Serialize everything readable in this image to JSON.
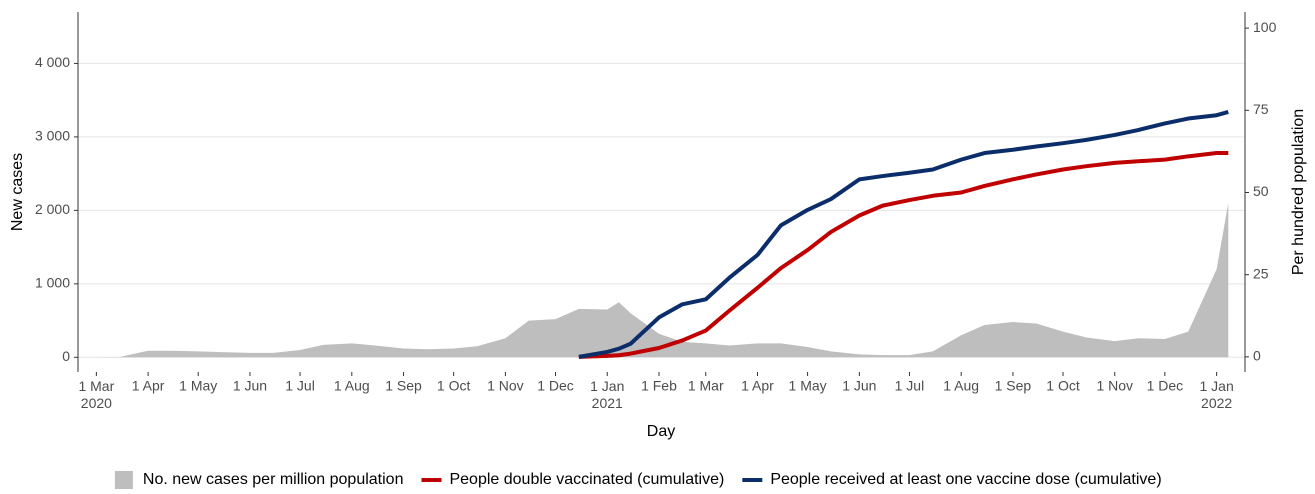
{
  "chart_data": {
    "type": "line",
    "x_label": "Day",
    "y_label": "New cases",
    "y2_label": "Per hundred population",
    "x": [
      "2020-03-01",
      "2020-03-15",
      "2020-04-01",
      "2020-04-15",
      "2020-05-01",
      "2020-05-15",
      "2020-06-01",
      "2020-06-15",
      "2020-07-01",
      "2020-07-15",
      "2020-08-01",
      "2020-08-15",
      "2020-09-01",
      "2020-09-15",
      "2020-10-01",
      "2020-10-15",
      "2020-11-01",
      "2020-11-15",
      "2020-12-01",
      "2020-12-15",
      "2021-01-01",
      "2021-01-08",
      "2021-01-15",
      "2021-02-01",
      "2021-02-15",
      "2021-03-01",
      "2021-03-15",
      "2021-04-01",
      "2021-04-15",
      "2021-05-01",
      "2021-05-15",
      "2021-06-01",
      "2021-06-15",
      "2021-07-01",
      "2021-07-15",
      "2021-08-01",
      "2021-08-15",
      "2021-09-01",
      "2021-09-15",
      "2021-10-01",
      "2021-10-15",
      "2021-11-01",
      "2021-11-15",
      "2021-12-01",
      "2021-12-15",
      "2022-01-01",
      "2022-01-08"
    ],
    "series": [
      {
        "name": "No. new cases per million population",
        "type": "area",
        "color": "#bebebe",
        "values": [
          0,
          5,
          90,
          90,
          80,
          70,
          60,
          60,
          100,
          170,
          190,
          160,
          120,
          110,
          120,
          150,
          260,
          500,
          520,
          660,
          650,
          750,
          600,
          320,
          210,
          190,
          160,
          190,
          190,
          140,
          80,
          40,
          30,
          30,
          80,
          300,
          440,
          480,
          460,
          350,
          270,
          220,
          260,
          250,
          350,
          1200,
          2100
        ]
      },
      {
        "name": "People double vaccinated (cumulative)",
        "type": "line",
        "axis": "y2",
        "color": "#c00000",
        "values": [
          null,
          null,
          null,
          null,
          null,
          null,
          null,
          null,
          null,
          null,
          null,
          null,
          null,
          null,
          null,
          null,
          null,
          null,
          null,
          0,
          0.3,
          0.5,
          1,
          2.7,
          5,
          8,
          14,
          21,
          27,
          32.5,
          38,
          43,
          46,
          47.7,
          49,
          50,
          52,
          54,
          55.5,
          57,
          58,
          59,
          59.5,
          60,
          61,
          62,
          62
        ]
      },
      {
        "name": "People received at least one vaccine dose (cumulative)",
        "type": "line",
        "axis": "y2",
        "color": "#0b2e6b",
        "values": [
          null,
          null,
          null,
          null,
          null,
          null,
          null,
          null,
          null,
          null,
          null,
          null,
          null,
          null,
          null,
          null,
          null,
          null,
          null,
          0,
          1.5,
          2.5,
          4,
          12,
          16,
          17.5,
          24,
          31,
          40,
          44.7,
          48,
          54,
          55,
          56,
          57,
          60,
          62,
          63,
          64,
          65,
          66,
          67.5,
          69,
          71,
          72.5,
          73.5,
          74.5
        ]
      }
    ],
    "xlim": [
      "2020-02-19",
      "2022-01-18"
    ],
    "xticks": [
      {
        "value": "2020-03-01",
        "label": "1 Mar\n2020"
      },
      {
        "value": "2020-04-01",
        "label": "1 Apr"
      },
      {
        "value": "2020-05-01",
        "label": "1 May"
      },
      {
        "value": "2020-06-01",
        "label": "1 Jun"
      },
      {
        "value": "2020-07-01",
        "label": "1 Jul"
      },
      {
        "value": "2020-08-01",
        "label": "1 Aug"
      },
      {
        "value": "2020-09-01",
        "label": "1 Sep"
      },
      {
        "value": "2020-10-01",
        "label": "1 Oct"
      },
      {
        "value": "2020-11-01",
        "label": "1 Nov"
      },
      {
        "value": "2020-12-01",
        "label": "1 Dec"
      },
      {
        "value": "2021-01-01",
        "label": "1 Jan\n2021"
      },
      {
        "value": "2021-02-01",
        "label": "1 Feb"
      },
      {
        "value": "2021-03-01",
        "label": "1 Mar"
      },
      {
        "value": "2021-04-01",
        "label": "1 Apr"
      },
      {
        "value": "2021-05-01",
        "label": "1 May"
      },
      {
        "value": "2021-06-01",
        "label": "1 Jun"
      },
      {
        "value": "2021-07-01",
        "label": "1 Jul"
      },
      {
        "value": "2021-08-01",
        "label": "1 Aug"
      },
      {
        "value": "2021-09-01",
        "label": "1 Sep"
      },
      {
        "value": "2021-10-01",
        "label": "1 Oct"
      },
      {
        "value": "2021-11-01",
        "label": "1 Nov"
      },
      {
        "value": "2021-12-01",
        "label": "1 Dec"
      },
      {
        "value": "2022-01-01",
        "label": "1 Jan\n2022"
      }
    ],
    "ylim": [
      -200,
      4700
    ],
    "yticks": [
      0,
      {
        "value": 1000,
        "label": "1 000"
      },
      {
        "value": 2000,
        "label": "2 000"
      },
      {
        "value": 3000,
        "label": "3 000"
      },
      {
        "value": 4000,
        "label": "4 000"
      }
    ],
    "y2lim": [
      -4.6,
      104.9
    ],
    "y2ticks": [
      0,
      25,
      50,
      75,
      100
    ],
    "grid": true,
    "legend": "bottom"
  }
}
